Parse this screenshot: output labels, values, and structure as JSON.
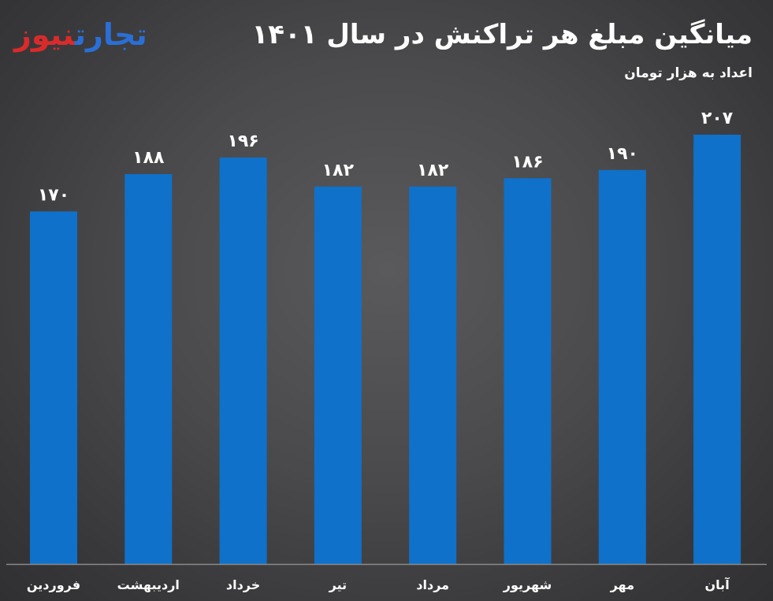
{
  "logo": {
    "word_blue": "تجارت",
    "word_red": "نیوز"
  },
  "title": "میانگین مبلغ هر تراکنش در سال ۱۴۰۱",
  "subtitle": "اعداد به هزار تومان",
  "colors": {
    "bar": "#0f71c9",
    "axis": "#8a8a8a",
    "text": "#ffffff"
  },
  "chart_data": {
    "type": "bar",
    "categories": [
      "فروردین",
      "اردیبهشت",
      "خرداد",
      "تیر",
      "مرداد",
      "شهریور",
      "مهر",
      "آبان"
    ],
    "values": [
      170,
      188,
      196,
      182,
      182,
      186,
      190,
      207
    ],
    "data_labels": [
      "۱۷۰",
      "۱۸۸",
      "۱۹۶",
      "۱۸۲",
      "۱۸۲",
      "۱۸۶",
      "۱۹۰",
      "۲۰۷"
    ],
    "title": "میانگین مبلغ هر تراکنش در سال ۱۴۰۱",
    "subtitle": "اعداد به هزار تومان",
    "xlabel": "",
    "ylabel": "",
    "ylim": [
      0,
      228
    ],
    "grid": false,
    "legend": "none"
  }
}
